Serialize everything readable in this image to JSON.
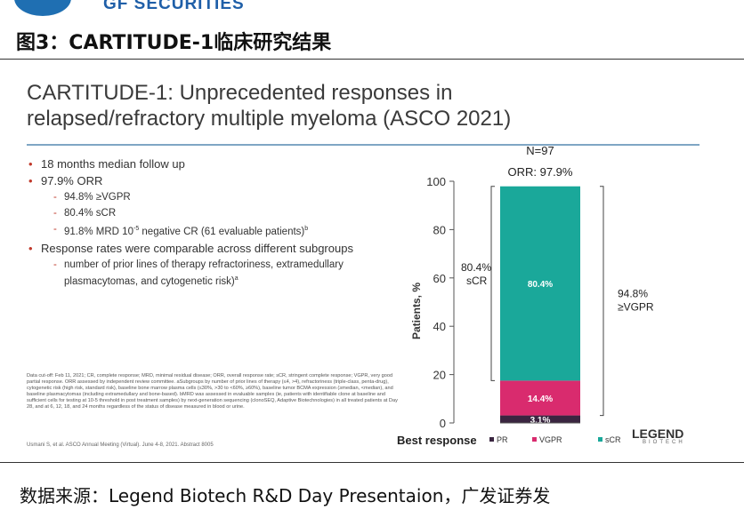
{
  "header": {
    "brand_text": "GF SECURITIES",
    "figure_title": "图3：CARTITUDE-1临床研究结果"
  },
  "slide": {
    "title_line1": "CARTITUDE-1: Unprecedented responses in",
    "title_line2": "relapsed/refractory multiple myeloma (ASCO 2021)",
    "bullets": {
      "b1": "18 months median follow up",
      "b2": "97.9% ORR",
      "b2a": "94.8% ≥VGPR",
      "b2b": "80.4% sCR",
      "b2c_pre": "91.8% MRD 10",
      "b2c_sup": "-5",
      "b2c_post": " negative CR (61 evaluable patients)",
      "b2c_note": "b",
      "b3": "Response rates were comparable across different subgroups",
      "b3a": "number of prior lines of therapy refractoriness, extramedullary plasmacytomas, and cytogenetic risk)",
      "b3a_note": "a"
    },
    "footnote": "Data cut-off: Feb 11, 2021; CR, complete response; MRD, minimal residual disease; ORR, overall response rate; sCR, stringent complete response; VGPR, very good partial response. ORR assessed by independent review committee. aSubgroups by number of prior lines of therapy (≤4, >4), refractoriness (triple-class, penta-drug), cytogenetic risk (high risk, standard risk), baseline bone marrow plasma cells (≤30%, >30 to <60%, ≥60%), baseline tumor BCMA expression (≥median, <median), and baseline plasmacytomas (including extramedullary and bone-based). bMRD was assessed in evaluable samples (ie, patients with identifiable clone at baseline and sufficient cells for testing at 10-5 threshold in post treatment samples) by next-generation sequencing (clonoSEQ, Adaptive Biotechnologies) in all treated patients at Day 28, and at 6, 12, 18, and 24 months regardless of the status of disease measured in blood or urine.",
    "citation": "Usmani S, et al. ASCO Annual Meeting (Virtual). June 4-8, 2021. Abstract 8005",
    "logo_text": "LEGEND",
    "logo_sub": "BIOTECH"
  },
  "chart_data": {
    "type": "bar",
    "stacked": true,
    "n_label": "N=97",
    "orr_label": "ORR: 97.9%",
    "ylabel": "Patients, %",
    "xlabel": "Best response",
    "ylim": [
      0,
      100
    ],
    "yticks": [
      0,
      20,
      40,
      60,
      80,
      100
    ],
    "categories": [
      ""
    ],
    "series": [
      {
        "name": "PR",
        "values": [
          3.1
        ],
        "color": "#3a2540",
        "label": "3.1%"
      },
      {
        "name": "VGPR",
        "values": [
          14.4
        ],
        "color": "#d92b6e",
        "label": "14.4%"
      },
      {
        "name": "sCR",
        "values": [
          80.4
        ],
        "color": "#1aa89a",
        "label": "80.4%"
      }
    ],
    "annotations": {
      "left_bracket": "80.4%\nsCR",
      "right_bracket": "94.8%\n≥VGPR"
    },
    "legend_position": "bottom"
  },
  "source": {
    "text": "数据来源：Legend Biotech R&D Day Presentaion，广发证券发"
  }
}
